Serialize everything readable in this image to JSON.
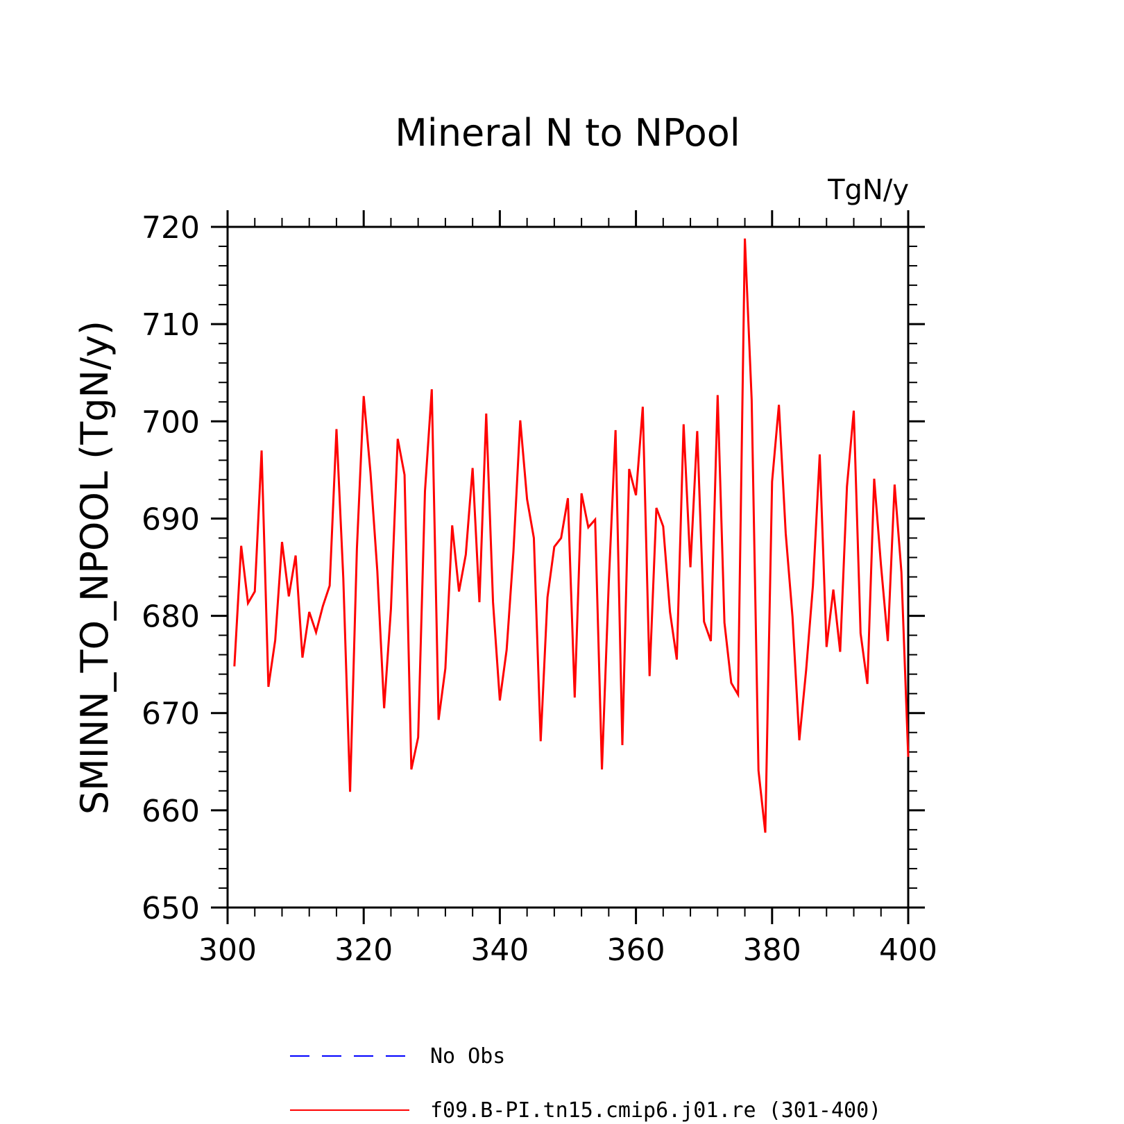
{
  "chart_data": {
    "type": "line",
    "title": "Mineral N to NPool",
    "units_label": "TgN/y",
    "xlabel": "",
    "ylabel": "SMINN_TO_NPOOL  (TgN/y)",
    "xlim": [
      300,
      400
    ],
    "ylim": [
      650,
      720
    ],
    "x_ticks": [
      300,
      320,
      340,
      360,
      380,
      400
    ],
    "y_ticks": [
      650,
      660,
      670,
      680,
      690,
      700,
      710,
      720
    ],
    "x_minor_step": 4,
    "y_minor_step": 2,
    "legend_position": "bottom",
    "series": [
      {
        "name": "No Obs",
        "color": "#0000ff",
        "dash": "dashed",
        "x": [],
        "values": []
      },
      {
        "name": "f09.B-PI.tn15.cmip6.j01.re (301-400)",
        "color": "#ff0000",
        "dash": "solid",
        "x": [
          301,
          302,
          303,
          304,
          305,
          306,
          307,
          308,
          309,
          310,
          311,
          312,
          313,
          314,
          315,
          316,
          317,
          318,
          319,
          320,
          321,
          322,
          323,
          324,
          325,
          326,
          327,
          328,
          329,
          330,
          331,
          332,
          333,
          334,
          335,
          336,
          337,
          338,
          339,
          340,
          341,
          342,
          343,
          344,
          345,
          346,
          347,
          348,
          349,
          350,
          351,
          352,
          353,
          354,
          355,
          356,
          357,
          358,
          359,
          360,
          361,
          362,
          363,
          364,
          365,
          366,
          367,
          368,
          369,
          370,
          371,
          372,
          373,
          374,
          375,
          376,
          377,
          378,
          379,
          380,
          381,
          382,
          383,
          384,
          385,
          386,
          387,
          388,
          389,
          390,
          391,
          392,
          393,
          394,
          395,
          396,
          397,
          398,
          399,
          400
        ],
        "values": [
          674.8,
          687.2,
          681.3,
          682.5,
          697.0,
          672.7,
          677.5,
          687.6,
          682.0,
          686.2,
          675.7,
          680.4,
          678.3,
          681.0,
          683.1,
          699.2,
          683.9,
          661.9,
          686.9,
          702.6,
          694.7,
          684.6,
          670.5,
          680.7,
          698.2,
          694.5,
          664.2,
          667.5,
          692.8,
          703.3,
          669.3,
          674.6,
          689.3,
          682.5,
          686.3,
          695.2,
          681.4,
          700.8,
          681.4,
          671.3,
          676.5,
          686.6,
          700.1,
          692.0,
          688.0,
          667.1,
          681.9,
          687.1,
          688.0,
          692.1,
          671.6,
          692.6,
          689.1,
          689.9,
          664.2,
          683.3,
          699.1,
          666.7,
          695.1,
          692.4,
          701.5,
          673.8,
          691.1,
          689.2,
          680.4,
          675.5,
          699.7,
          685.0,
          699.0,
          679.4,
          677.4,
          702.7,
          679.3,
          673.1,
          671.9,
          718.8,
          702.2,
          664.1,
          657.7,
          693.8,
          701.7,
          688.5,
          679.9,
          667.2,
          674.4,
          683.1,
          696.6,
          676.8,
          682.7,
          676.3,
          693.3,
          701.1,
          678.2,
          673.0,
          694.1,
          685.2,
          677.4,
          693.5,
          684.5,
          665.5
        ]
      }
    ]
  }
}
